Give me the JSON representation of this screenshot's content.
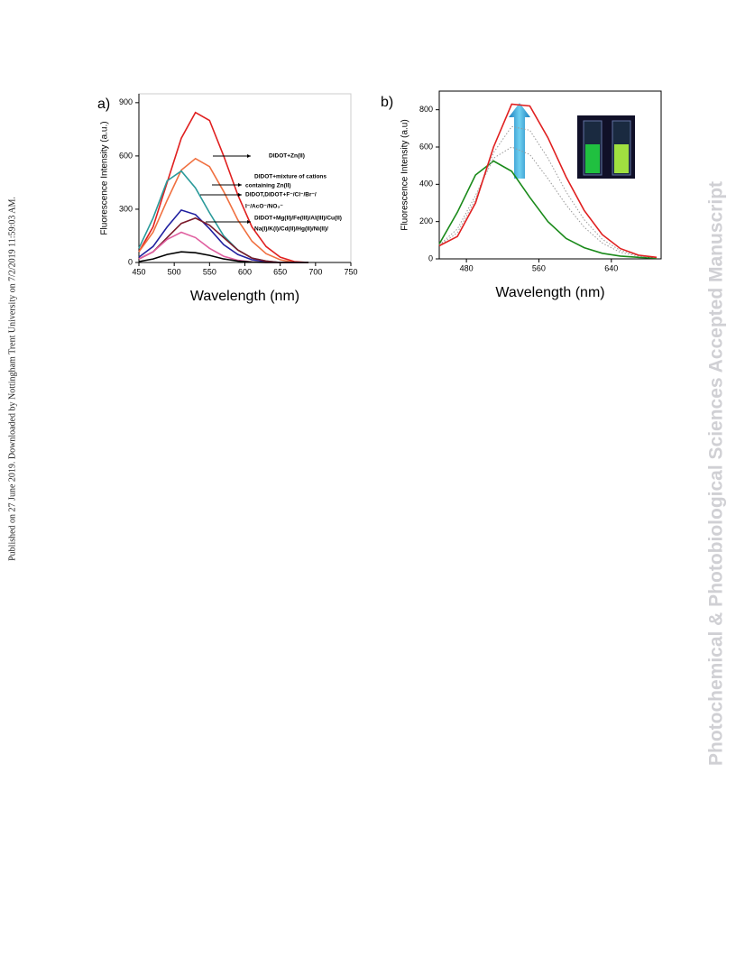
{
  "side_note": "Published on 27 June 2019. Downloaded by Nottingham Trent University on 7/2/2019 11:59:03 AM.",
  "watermark": "Photochemical & Photobiological Sciences Accepted Manuscript",
  "chart_data": [
    {
      "type": "line",
      "panel_label": "a)",
      "xlabel": "Wavelength (nm)",
      "ylabel": "Fluorescence Intensity (a.u.)",
      "xlim": [
        450,
        750
      ],
      "xticks": [
        450,
        500,
        550,
        600,
        650,
        700,
        750
      ],
      "ylim": [
        0,
        950
      ],
      "yticks": [
        0,
        300,
        600,
        900
      ],
      "x": [
        450,
        470,
        490,
        510,
        530,
        550,
        570,
        590,
        610,
        630,
        650,
        670,
        690
      ],
      "series": [
        {
          "color": "#e02020",
          "values": [
            60,
            200,
            450,
            700,
            845,
            800,
            600,
            380,
            200,
            90,
            30,
            5,
            0
          ]
        },
        {
          "color": "#f07040",
          "values": [
            60,
            170,
            350,
            520,
            585,
            540,
            400,
            240,
            120,
            50,
            15,
            0,
            0
          ]
        },
        {
          "color": "#2a9a9a",
          "values": [
            80,
            250,
            460,
            515,
            420,
            280,
            150,
            70,
            25,
            8,
            0,
            0,
            0
          ]
        },
        {
          "color": "#2020a0",
          "values": [
            30,
            90,
            200,
            295,
            270,
            190,
            100,
            45,
            15,
            5,
            0,
            0,
            0
          ]
        },
        {
          "color": "#7a1a2a",
          "values": [
            20,
            60,
            140,
            220,
            250,
            210,
            140,
            70,
            25,
            8,
            0,
            0,
            0
          ]
        },
        {
          "color": "#e060a0",
          "values": [
            20,
            60,
            130,
            170,
            140,
            80,
            35,
            12,
            3,
            0,
            0,
            0,
            0
          ]
        },
        {
          "color": "#000000",
          "values": [
            5,
            20,
            45,
            60,
            55,
            40,
            20,
            8,
            2,
            0,
            0,
            0,
            0
          ]
        }
      ],
      "annotations": [
        "DIDOT+Zn(II)",
        "DIDOT+mixture of cations",
        "containing Zn(II)",
        "DIDOT,DIDOT+F⁻/Cl⁻/Br⁻/",
        "I⁻/AcO⁻/NO₃⁻",
        "DIDOT+Mg(II)/Fe(III)/Al(III)/Cu(II)",
        "Na(I)/K(I)/Cd(II)/Hg(II)/Ni(II)/"
      ]
    },
    {
      "type": "line",
      "panel_label": "b)",
      "xlabel": "Wavelength (nm)",
      "ylabel": "Fluorescence Intensity (a.u)",
      "xlim": [
        450,
        695
      ],
      "xticks": [
        480,
        560,
        640
      ],
      "ylim": [
        0,
        900
      ],
      "yticks": [
        0,
        200,
        400,
        600,
        800
      ],
      "x": [
        450,
        470,
        490,
        510,
        530,
        550,
        570,
        590,
        610,
        630,
        650,
        670,
        690
      ],
      "series": [
        {
          "color": "#1a8a1a",
          "style": "solid",
          "values": [
            80,
            250,
            450,
            525,
            470,
            330,
            200,
            110,
            60,
            30,
            15,
            8,
            4
          ]
        },
        {
          "color": "#999999",
          "style": "dotted",
          "values": [
            75,
            160,
            340,
            540,
            600,
            560,
            430,
            290,
            170,
            85,
            35,
            14,
            6
          ]
        },
        {
          "color": "#999999",
          "style": "dotted",
          "values": [
            72,
            140,
            320,
            570,
            710,
            690,
            540,
            360,
            210,
            105,
            45,
            17,
            7
          ]
        },
        {
          "color": "#e02020",
          "style": "solid",
          "values": [
            70,
            120,
            300,
            600,
            830,
            820,
            650,
            440,
            260,
            130,
            55,
            20,
            8
          ]
        }
      ]
    }
  ]
}
